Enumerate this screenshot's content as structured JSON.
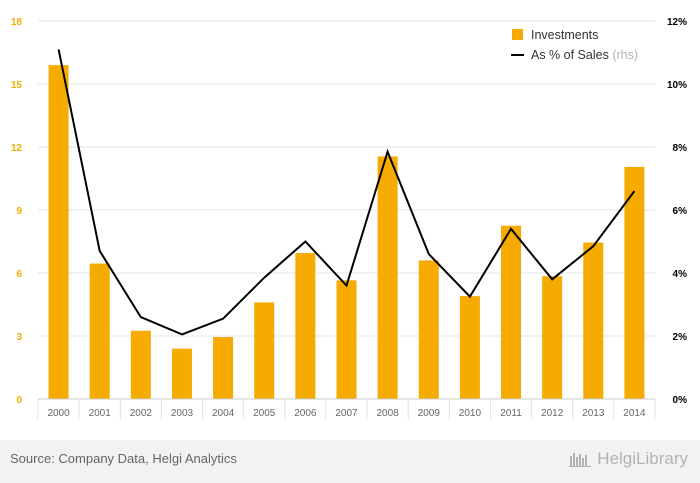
{
  "chart_data": {
    "type": "bar",
    "categories": [
      "2000",
      "2001",
      "2002",
      "2003",
      "2004",
      "2005",
      "2006",
      "2007",
      "2008",
      "2009",
      "2010",
      "2011",
      "2012",
      "2013",
      "2014"
    ],
    "series": [
      {
        "name": "Investments",
        "type": "bar",
        "axis": "left",
        "color": "#f5ab00",
        "values": [
          15.9,
          6.45,
          3.25,
          2.4,
          2.95,
          4.6,
          6.95,
          5.65,
          11.55,
          6.6,
          4.9,
          8.25,
          5.85,
          7.45,
          11.05
        ]
      },
      {
        "name": "As % of Sales",
        "name_suffix": "(rhs)",
        "type": "line",
        "axis": "right",
        "color": "#000000",
        "values": [
          11.1,
          4.7,
          2.6,
          2.05,
          2.55,
          3.85,
          5.0,
          3.6,
          7.85,
          4.6,
          3.25,
          5.4,
          3.8,
          4.85,
          6.6
        ]
      }
    ],
    "left_axis": {
      "ylim": [
        0,
        18
      ],
      "ticks": [
        "0",
        "3",
        "6",
        "9",
        "12",
        "15",
        "18"
      ],
      "color": "#f5ab00"
    },
    "right_axis": {
      "ylim": [
        0,
        12
      ],
      "ticks": [
        "0%",
        "2%",
        "4%",
        "6%",
        "8%",
        "10%",
        "12%"
      ],
      "color": "#000000"
    },
    "grid": true,
    "legend_position": "top-right"
  },
  "footer": {
    "source": "Source: Company Data, Helgi Analytics",
    "logo_text": "HelgiLibrary"
  }
}
